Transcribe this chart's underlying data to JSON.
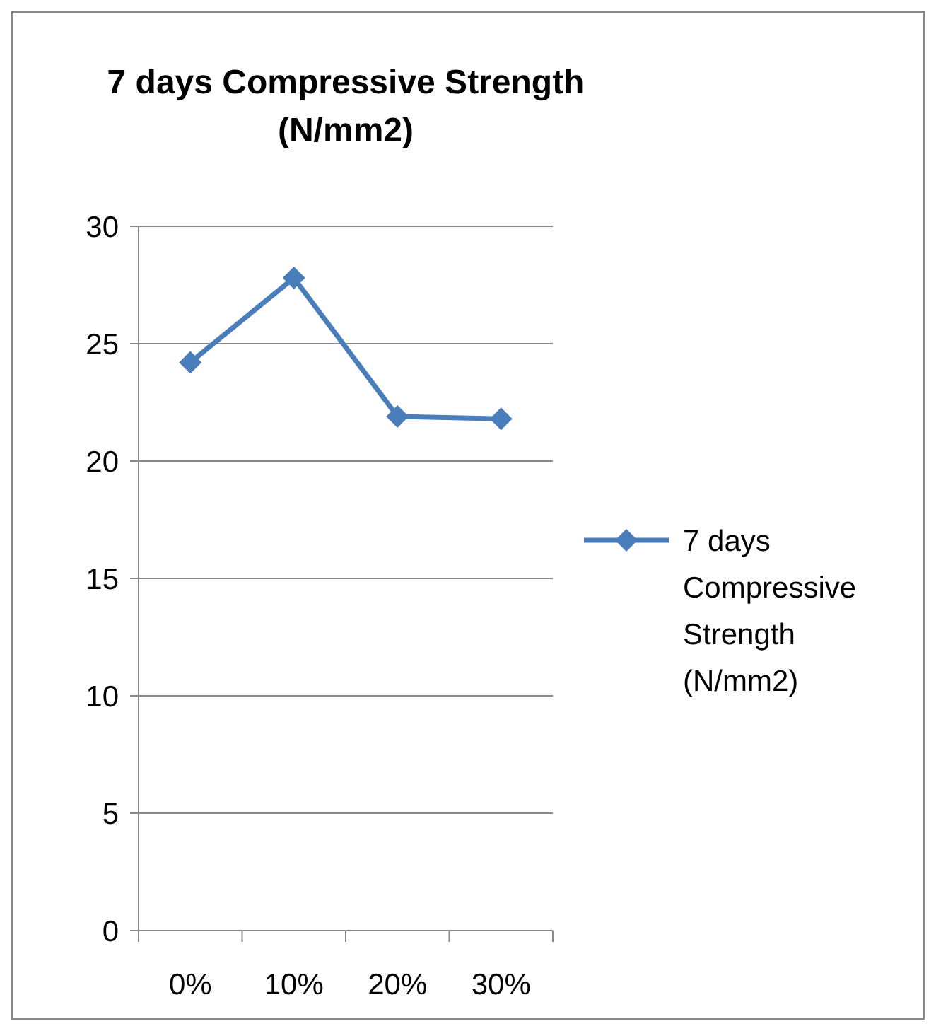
{
  "chart_data": {
    "type": "line",
    "title": "7 days Compressive Strength (N/mm2)",
    "categories": [
      "0%",
      "10%",
      "20%",
      "30%"
    ],
    "series": [
      {
        "name": "7 days Compressive Strength (N/mm2)",
        "color": "#4a7ebb",
        "values": [
          24.2,
          27.8,
          21.9,
          21.8
        ]
      }
    ],
    "ylim": [
      0,
      30
    ],
    "yticks": [
      0,
      5,
      10,
      15,
      20,
      25,
      30
    ],
    "grid": "y",
    "legend": "right",
    "marker": "diamond",
    "line_style": "solid"
  }
}
